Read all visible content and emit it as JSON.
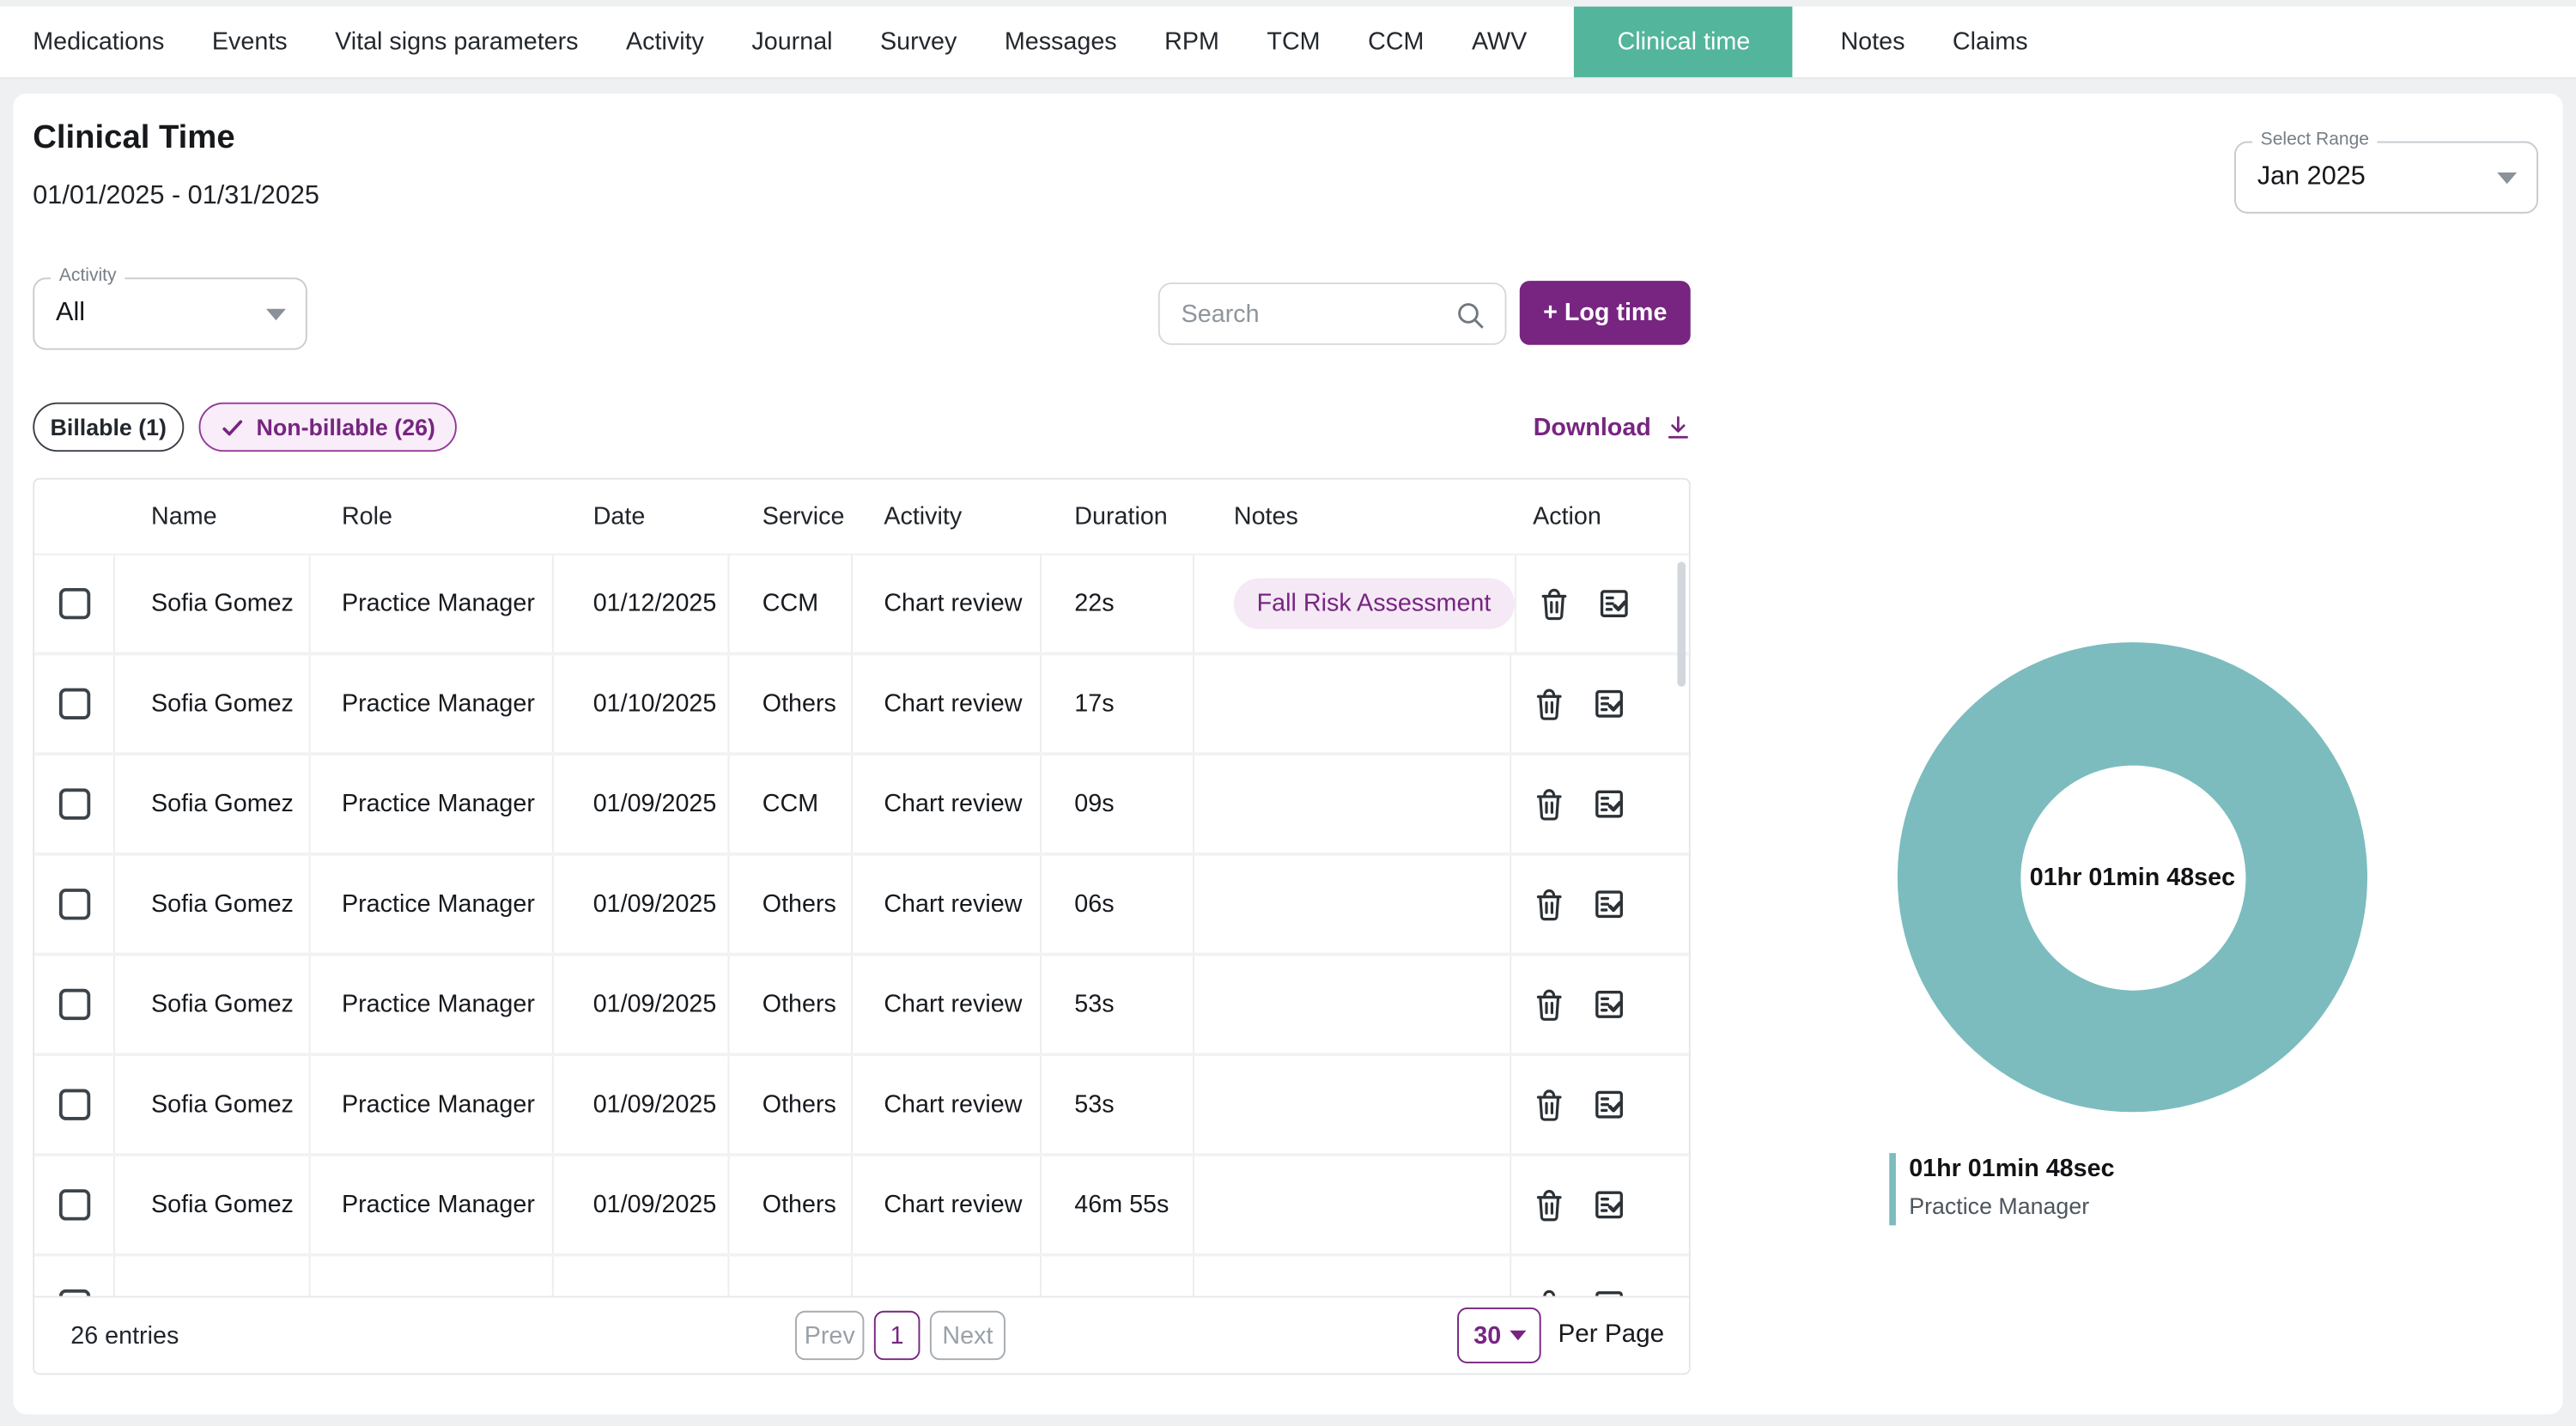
{
  "colors": {
    "teal": "#53b59b",
    "purple": "#772581",
    "donut": "#7cbcbe"
  },
  "nav": {
    "items": [
      {
        "label": "Medications",
        "active": false
      },
      {
        "label": "Events",
        "active": false
      },
      {
        "label": "Vital signs parameters",
        "active": false
      },
      {
        "label": "Activity",
        "active": false
      },
      {
        "label": "Journal",
        "active": false
      },
      {
        "label": "Survey",
        "active": false
      },
      {
        "label": "Messages",
        "active": false
      },
      {
        "label": "RPM",
        "active": false
      },
      {
        "label": "TCM",
        "active": false
      },
      {
        "label": "CCM",
        "active": false
      },
      {
        "label": "AWV",
        "active": false
      },
      {
        "label": "Clinical time",
        "active": true
      },
      {
        "label": "Notes",
        "active": false
      },
      {
        "label": "Claims",
        "active": false
      }
    ]
  },
  "page": {
    "title": "Clinical Time",
    "date_range": "01/01/2025 - 01/31/2025"
  },
  "select_range": {
    "label": "Select Range",
    "value": "Jan 2025"
  },
  "filters": {
    "activity_label": "Activity",
    "activity_value": "All",
    "search_placeholder": "Search",
    "log_time_label": "+ Log time"
  },
  "segments": {
    "billable": "Billable (1)",
    "non_billable": "Non-billable (26)"
  },
  "download_label": "Download",
  "table": {
    "columns": [
      "Name",
      "Role",
      "Date",
      "Service",
      "Activity",
      "Duration",
      "Notes",
      "Action"
    ],
    "rows": [
      {
        "name": "Sofia Gomez",
        "role": "Practice Manager",
        "date": "01/12/2025",
        "service": "CCM",
        "activity": "Chart review",
        "duration": "22s",
        "note": "Fall Risk Assessment",
        "partial": false
      },
      {
        "name": "Sofia Gomez",
        "role": "Practice Manager",
        "date": "01/10/2025",
        "service": "Others",
        "activity": "Chart review",
        "duration": "17s",
        "note": "",
        "partial": false
      },
      {
        "name": "Sofia Gomez",
        "role": "Practice Manager",
        "date": "01/09/2025",
        "service": "CCM",
        "activity": "Chart review",
        "duration": "09s",
        "note": "",
        "partial": false
      },
      {
        "name": "Sofia Gomez",
        "role": "Practice Manager",
        "date": "01/09/2025",
        "service": "Others",
        "activity": "Chart review",
        "duration": "06s",
        "note": "",
        "partial": false
      },
      {
        "name": "Sofia Gomez",
        "role": "Practice Manager",
        "date": "01/09/2025",
        "service": "Others",
        "activity": "Chart review",
        "duration": "53s",
        "note": "",
        "partial": false
      },
      {
        "name": "Sofia Gomez",
        "role": "Practice Manager",
        "date": "01/09/2025",
        "service": "Others",
        "activity": "Chart review",
        "duration": "53s",
        "note": "",
        "partial": false
      },
      {
        "name": "Sofia Gomez",
        "role": "Practice Manager",
        "date": "01/09/2025",
        "service": "Others",
        "activity": "Chart review",
        "duration": "46m 55s",
        "note": "",
        "partial": false
      },
      {
        "name": "",
        "role": "",
        "date": "",
        "service": "",
        "activity": "",
        "duration": "",
        "note": "",
        "partial": true
      }
    ]
  },
  "footer": {
    "entries": "26 entries",
    "prev": "Prev",
    "page": "1",
    "next": "Next",
    "per_page_value": "30",
    "per_page_label": "Per Page"
  },
  "chart_data": {
    "type": "pie",
    "title": "",
    "center_label": "01hr 01min 48sec",
    "legend_position": "bottom-left",
    "series": [
      {
        "name": "Practice Manager",
        "value_label": "01hr 01min 48sec",
        "seconds": 3708,
        "fraction": 1.0,
        "color": "#7cbcbe"
      }
    ]
  }
}
